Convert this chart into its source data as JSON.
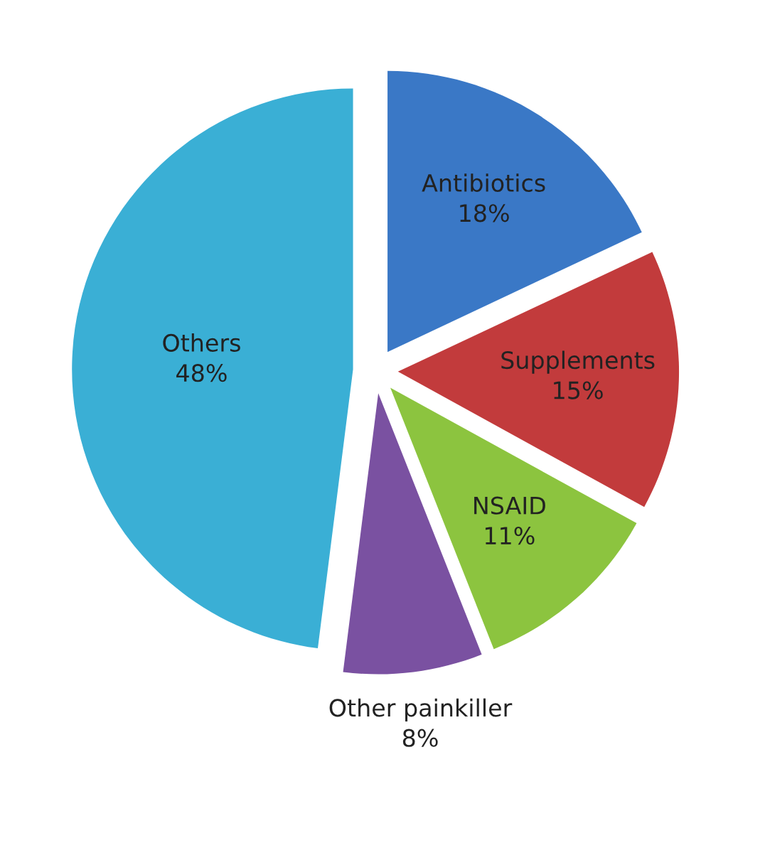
{
  "chart_data": {
    "type": "pie",
    "categories": [
      "Antibiotics",
      "Supplements",
      "NSAID",
      "Other painkiller",
      "Others"
    ],
    "values": [
      18,
      15,
      11,
      8,
      48
    ],
    "value_labels": [
      "18%",
      "15%",
      "11%",
      "8%",
      "48%"
    ],
    "colors": [
      "#3a78c6",
      "#c23b3c",
      "#8cc43f",
      "#7a51a1",
      "#3aafd5"
    ]
  }
}
